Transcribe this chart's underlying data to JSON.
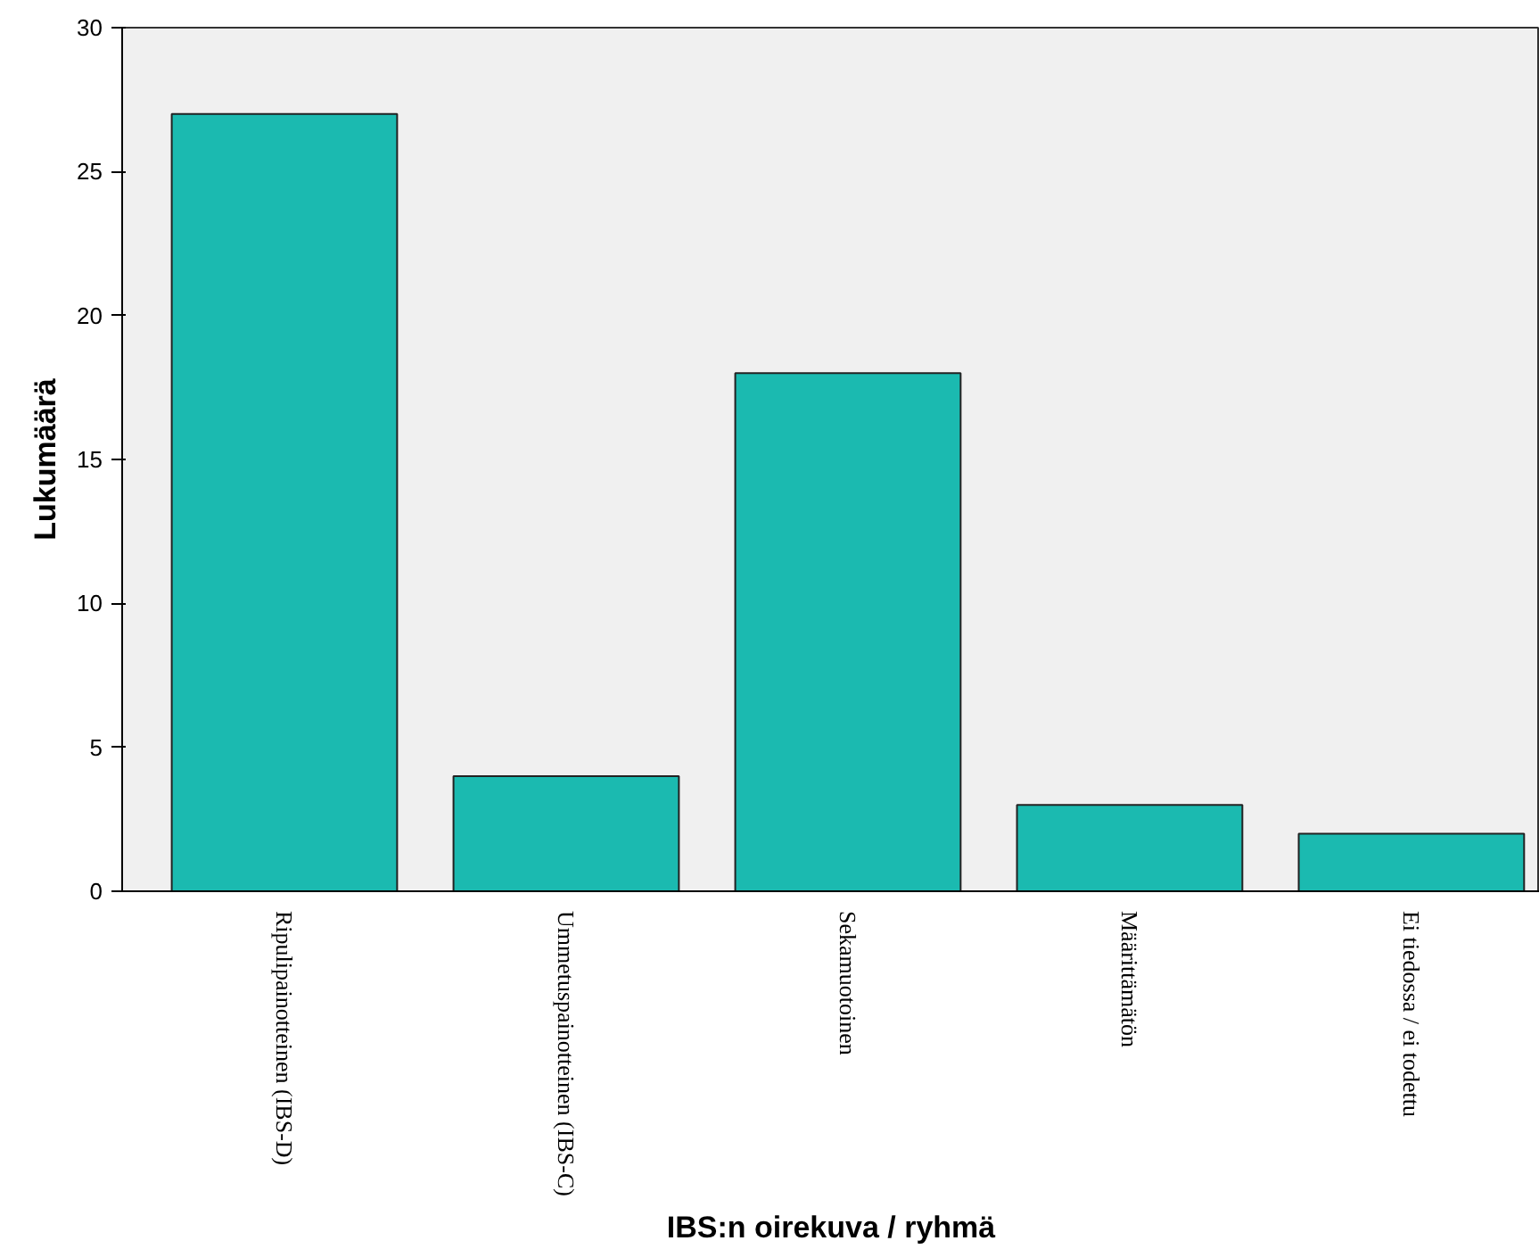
{
  "chart_data": {
    "type": "bar",
    "xlabel": "IBS:n oirekuva / ryhmä",
    "ylabel": "Lukumäärä",
    "categories": [
      "Ripulipainotteinen (IBS-D)",
      "Ummetuspainotteinen (IBS-C)",
      "Sekamuotoinen",
      "Määrittämätön",
      "Ei tiedossa / ei todettu"
    ],
    "values": [
      27,
      4,
      18,
      3,
      2
    ],
    "color": "#1bbab0",
    "ylim": [
      0,
      30
    ],
    "yticks": [
      0,
      5,
      10,
      15,
      20,
      25,
      30
    ],
    "grid": false
  }
}
